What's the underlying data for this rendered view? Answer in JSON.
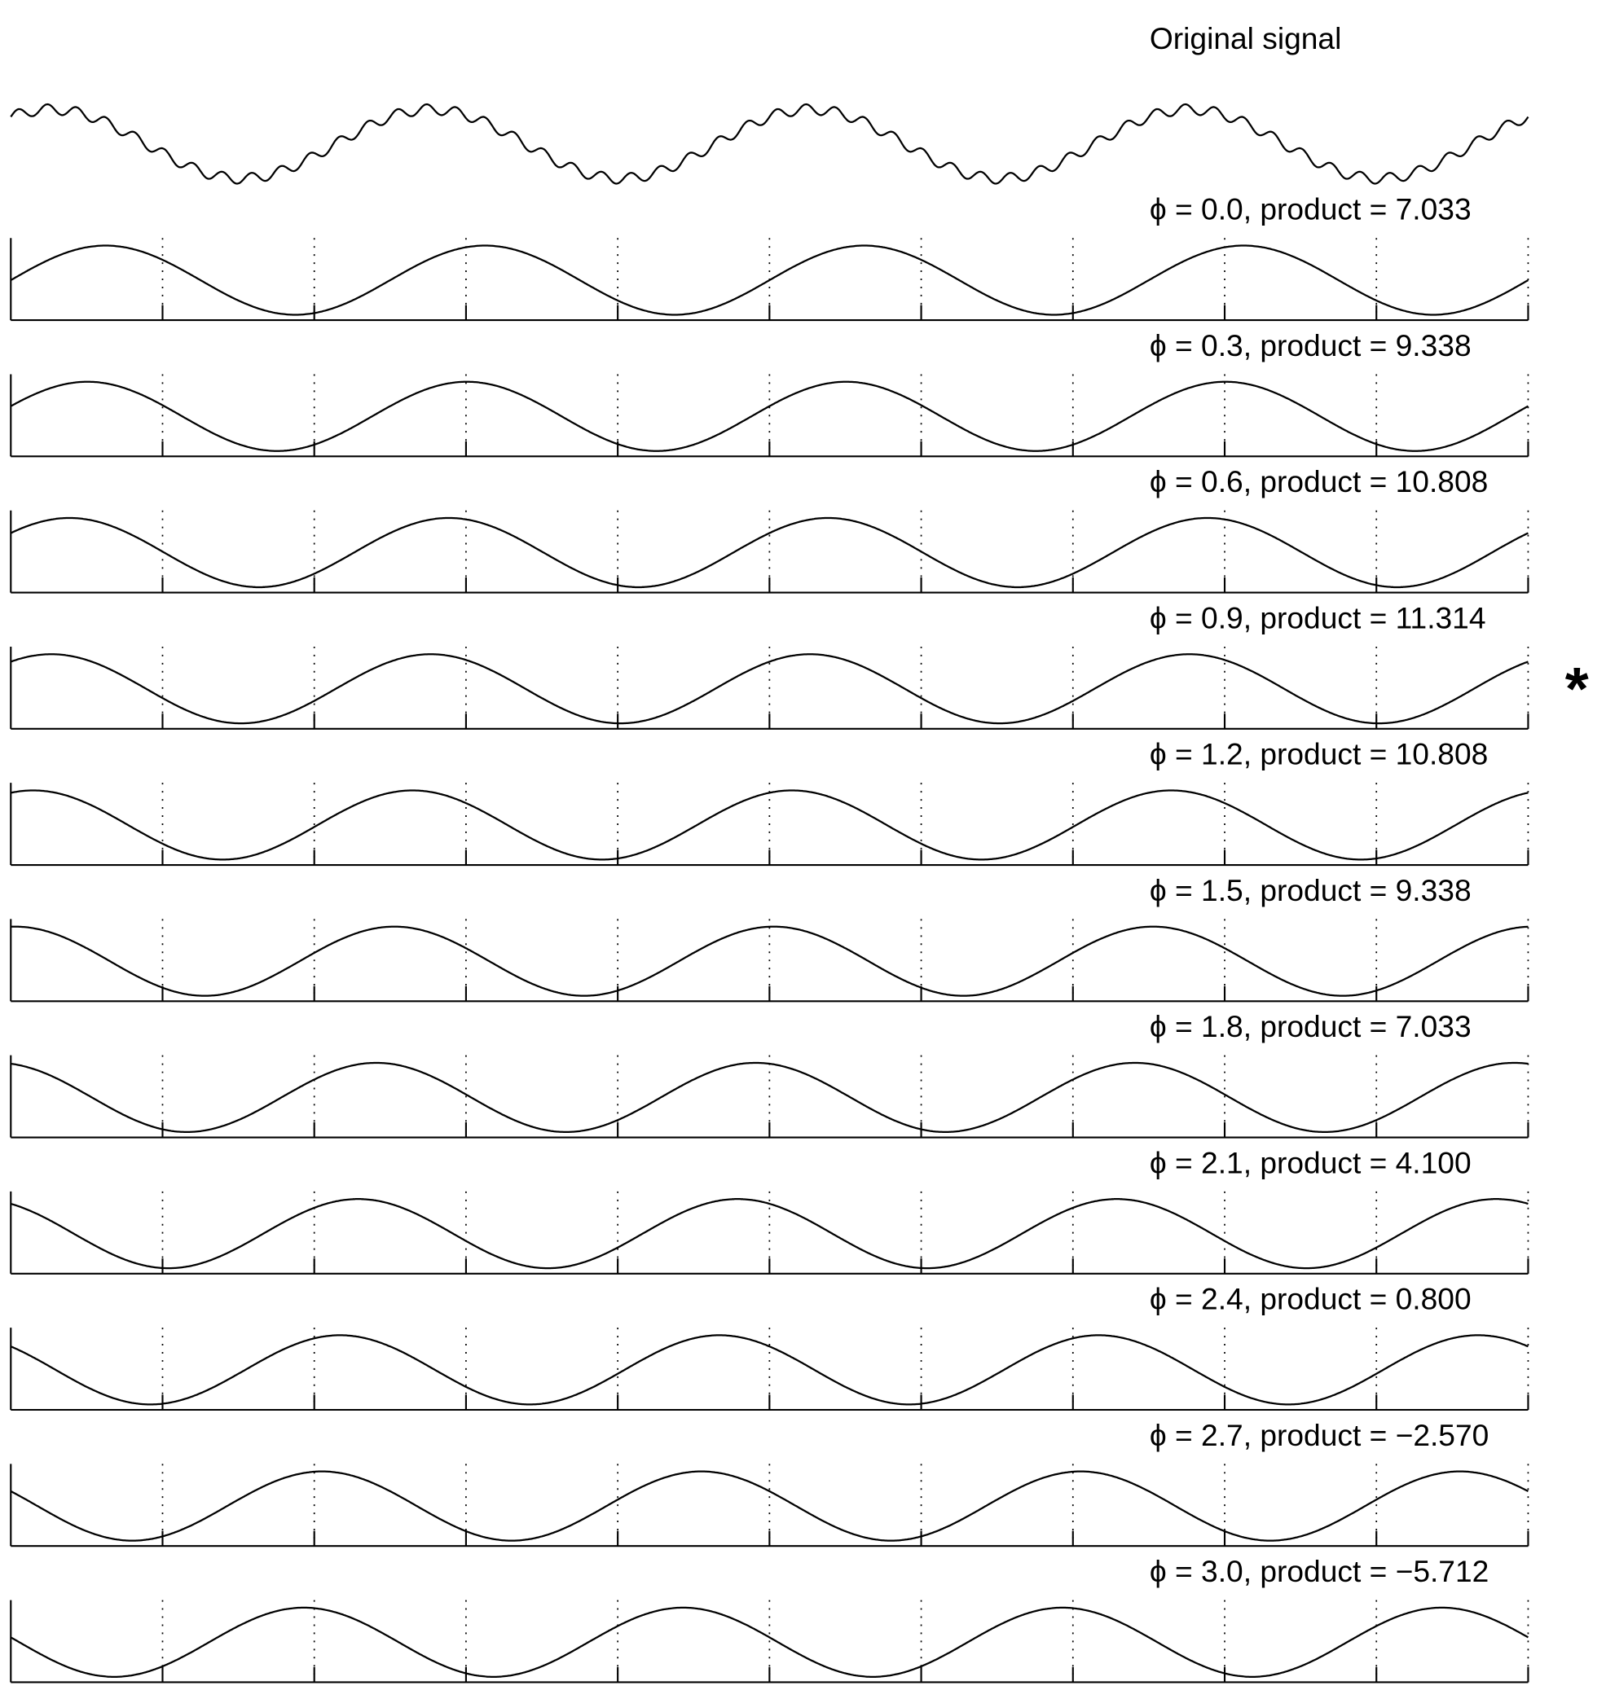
{
  "chart_data": [
    {
      "type": "line",
      "title": "Original signal",
      "phi": 0.9,
      "frequency": 0.4,
      "ripple_frequency": 5.2,
      "ripple_amplitude": 0.15,
      "xlim": [
        0,
        10
      ]
    },
    {
      "type": "line",
      "title": "ϕ = 0.0, product = 7.033",
      "phi": 0.0,
      "frequency": 0.4,
      "xlim": [
        0,
        10
      ],
      "xticks": [
        0,
        1,
        2,
        3,
        4,
        5,
        6,
        7,
        8,
        9,
        10
      ]
    },
    {
      "type": "line",
      "title": "ϕ = 0.3, product = 9.338",
      "phi": 0.3,
      "frequency": 0.4,
      "xlim": [
        0,
        10
      ],
      "xticks": [
        0,
        1,
        2,
        3,
        4,
        5,
        6,
        7,
        8,
        9,
        10
      ]
    },
    {
      "type": "line",
      "title": "ϕ = 0.6, product = 10.808",
      "phi": 0.6,
      "frequency": 0.4,
      "xlim": [
        0,
        10
      ],
      "xticks": [
        0,
        1,
        2,
        3,
        4,
        5,
        6,
        7,
        8,
        9,
        10
      ]
    },
    {
      "type": "line",
      "title": "ϕ = 0.9, product = 11.314",
      "phi": 0.9,
      "frequency": 0.4,
      "xlim": [
        0,
        10
      ],
      "xticks": [
        0,
        1,
        2,
        3,
        4,
        5,
        6,
        7,
        8,
        9,
        10
      ],
      "marker": "*"
    },
    {
      "type": "line",
      "title": "ϕ = 1.2, product = 10.808",
      "phi": 1.2,
      "frequency": 0.4,
      "xlim": [
        0,
        10
      ],
      "xticks": [
        0,
        1,
        2,
        3,
        4,
        5,
        6,
        7,
        8,
        9,
        10
      ]
    },
    {
      "type": "line",
      "title": "ϕ = 1.5, product = 9.338",
      "phi": 1.5,
      "frequency": 0.4,
      "xlim": [
        0,
        10
      ],
      "xticks": [
        0,
        1,
        2,
        3,
        4,
        5,
        6,
        7,
        8,
        9,
        10
      ]
    },
    {
      "type": "line",
      "title": "ϕ = 1.8, product = 7.033",
      "phi": 1.8,
      "frequency": 0.4,
      "xlim": [
        0,
        10
      ],
      "xticks": [
        0,
        1,
        2,
        3,
        4,
        5,
        6,
        7,
        8,
        9,
        10
      ]
    },
    {
      "type": "line",
      "title": "ϕ = 2.1, product = 4.100",
      "phi": 2.1,
      "frequency": 0.4,
      "xlim": [
        0,
        10
      ],
      "xticks": [
        0,
        1,
        2,
        3,
        4,
        5,
        6,
        7,
        8,
        9,
        10
      ]
    },
    {
      "type": "line",
      "title": "ϕ = 2.4, product = 0.800",
      "phi": 2.4,
      "frequency": 0.4,
      "xlim": [
        0,
        10
      ],
      "xticks": [
        0,
        1,
        2,
        3,
        4,
        5,
        6,
        7,
        8,
        9,
        10
      ]
    },
    {
      "type": "line",
      "title": "ϕ = 2.7, product = −2.570",
      "phi": 2.7,
      "frequency": 0.4,
      "xlim": [
        0,
        10
      ],
      "xticks": [
        0,
        1,
        2,
        3,
        4,
        5,
        6,
        7,
        8,
        9,
        10
      ]
    },
    {
      "type": "line",
      "title": "ϕ = 3.0, product = −5.712",
      "phi": 3.0,
      "frequency": 0.4,
      "xlim": [
        0,
        10
      ],
      "xticks": [
        0,
        1,
        2,
        3,
        4,
        5,
        6,
        7,
        8,
        9,
        10
      ]
    }
  ]
}
